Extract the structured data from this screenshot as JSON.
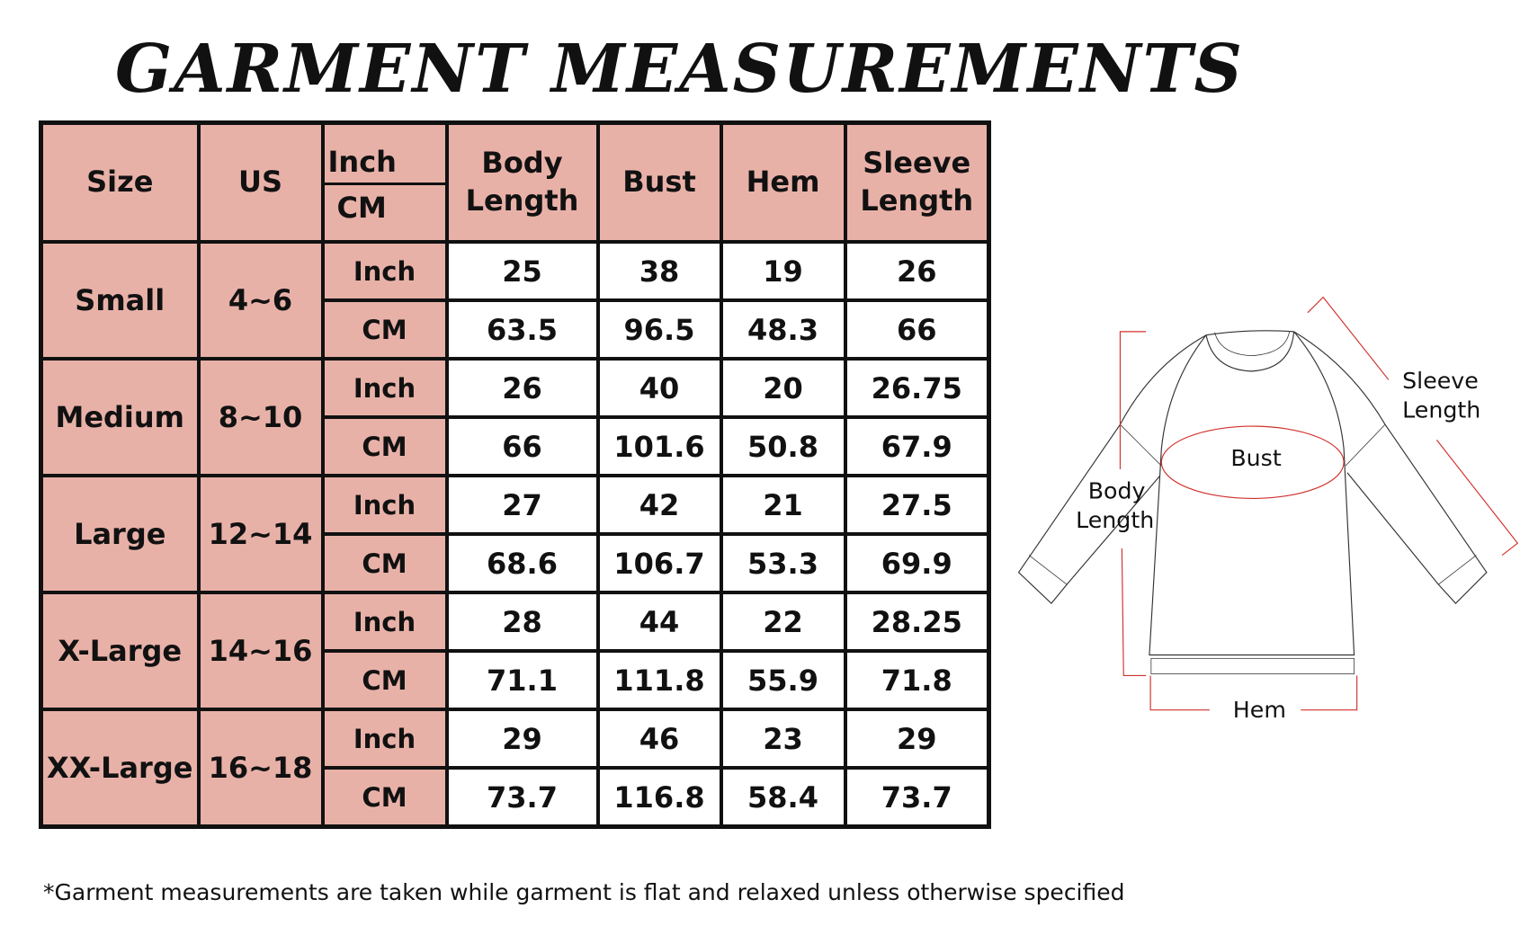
{
  "title": "GARMENT MEASUREMENTS",
  "table": {
    "headers": {
      "size": "Size",
      "us": "US",
      "inch": "Inch",
      "cm": "CM",
      "body_length": "Body Length",
      "bust": "Bust",
      "hem": "Hem",
      "sleeve_length": "Sleeve Length"
    },
    "rows": [
      {
        "size": "Small",
        "us": "4~6",
        "inch": {
          "unit": "Inch",
          "values": [
            "25",
            "38",
            "19",
            "26"
          ]
        },
        "cm": {
          "unit": "CM",
          "values": [
            "63.5",
            "96.5",
            "48.3",
            "66"
          ]
        }
      },
      {
        "size": "Medium",
        "us": "8~10",
        "inch": {
          "unit": "Inch",
          "values": [
            "26",
            "40",
            "20",
            "26.75"
          ]
        },
        "cm": {
          "unit": "CM",
          "values": [
            "66",
            "101.6",
            "50.8",
            "67.9"
          ]
        }
      },
      {
        "size": "Large",
        "us": "12~14",
        "inch": {
          "unit": "Inch",
          "values": [
            "27",
            "42",
            "21",
            "27.5"
          ]
        },
        "cm": {
          "unit": "CM",
          "values": [
            "68.6",
            "106.7",
            "53.3",
            "69.9"
          ]
        }
      },
      {
        "size": "X-Large",
        "us": "14~16",
        "inch": {
          "unit": "Inch",
          "values": [
            "28",
            "44",
            "22",
            "28.25"
          ]
        },
        "cm": {
          "unit": "CM",
          "values": [
            "71.1",
            "111.8",
            "55.9",
            "71.8"
          ]
        }
      },
      {
        "size": "XX-Large",
        "us": "16~18",
        "inch": {
          "unit": "Inch",
          "values": [
            "29",
            "46",
            "23",
            "29"
          ]
        },
        "cm": {
          "unit": "CM",
          "values": [
            "73.7",
            "116.8",
            "58.4",
            "73.7"
          ]
        }
      }
    ]
  },
  "diagram": {
    "bust": "Bust",
    "body_length": "Body Length",
    "sleeve_length": "Sleeve Length",
    "hem": "Hem",
    "measure_color": "#d0312d"
  },
  "footnote": "*Garment measurements are taken while garment is flat and relaxed unless otherwise specified",
  "colors": {
    "header_bg": "#e8b1a8"
  }
}
